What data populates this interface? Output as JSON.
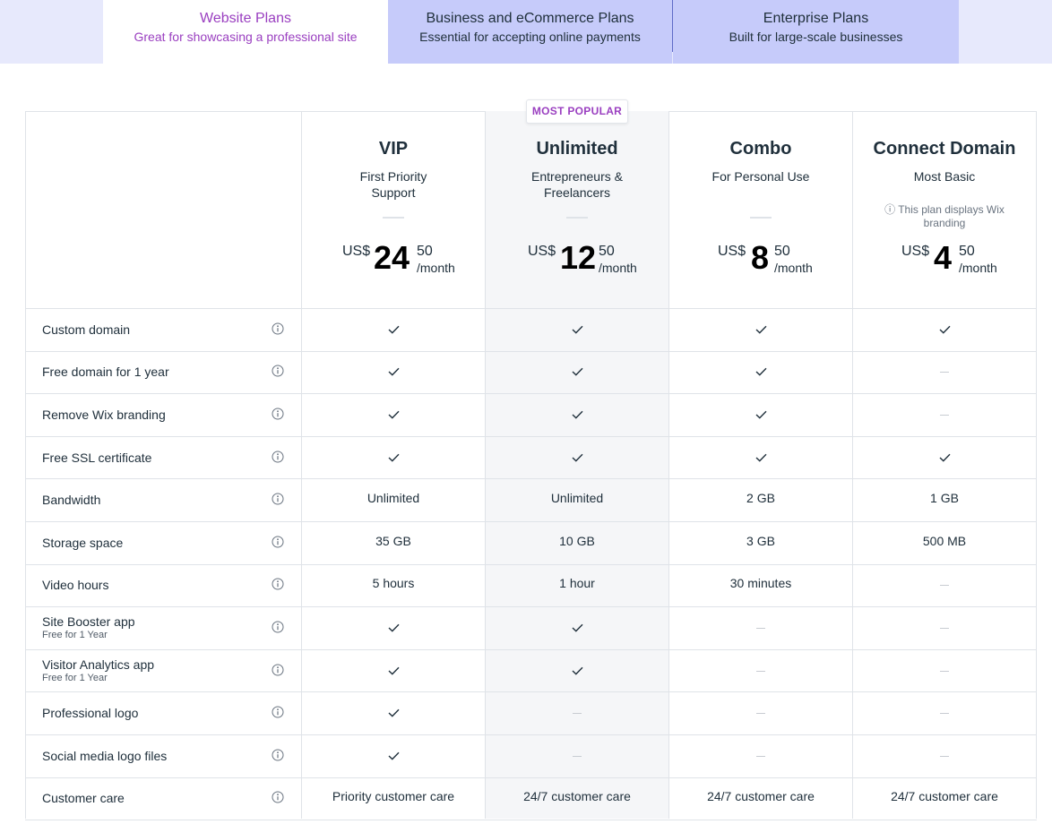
{
  "tabs": [
    {
      "title": "Website Plans",
      "subtitle": "Great for showcasing a professional site"
    },
    {
      "title": "Business and eCommerce Plans",
      "subtitle": "Essential for accepting online payments"
    },
    {
      "title": "Enterprise Plans",
      "subtitle": "Built for large-scale businesses"
    }
  ],
  "badge": "MOST POPULAR",
  "currency": "US$",
  "plans": [
    {
      "name": "VIP",
      "tagline": "First Priority Support",
      "dollars": "24",
      "cents": "50",
      "period": "/month",
      "note": ""
    },
    {
      "name": "Unlimited",
      "tagline": "Entrepreneurs & Freelancers",
      "dollars": "12",
      "cents": "50",
      "period": "/month",
      "note": ""
    },
    {
      "name": "Combo",
      "tagline": "For Personal Use",
      "dollars": "8",
      "cents": "50",
      "period": "/month",
      "note": ""
    },
    {
      "name": "Connect Domain",
      "tagline": "Most Basic",
      "dollars": "4",
      "cents": "50",
      "period": "/month",
      "note": "This plan displays Wix branding"
    }
  ],
  "features": [
    {
      "label": "Custom domain",
      "sub": "",
      "values": [
        "check",
        "check",
        "check",
        "check"
      ]
    },
    {
      "label": "Free domain for 1 year",
      "sub": "",
      "values": [
        "check",
        "check",
        "check",
        "dash"
      ]
    },
    {
      "label": "Remove Wix branding",
      "sub": "",
      "values": [
        "check",
        "check",
        "check",
        "dash"
      ]
    },
    {
      "label": "Free SSL certificate",
      "sub": "",
      "values": [
        "check",
        "check",
        "check",
        "check"
      ]
    },
    {
      "label": "Bandwidth",
      "sub": "",
      "values": [
        "Unlimited",
        "Unlimited",
        "2 GB",
        "1 GB"
      ]
    },
    {
      "label": "Storage space",
      "sub": "",
      "values": [
        "35 GB",
        "10 GB",
        "3 GB",
        "500 MB"
      ]
    },
    {
      "label": "Video hours",
      "sub": "",
      "values": [
        "5 hours",
        "1 hour",
        "30 minutes",
        "dash"
      ]
    },
    {
      "label": "Site Booster app",
      "sub": "Free for 1 Year",
      "values": [
        "check",
        "check",
        "dash",
        "dash"
      ]
    },
    {
      "label": "Visitor Analytics app",
      "sub": "Free for 1 Year",
      "values": [
        "check",
        "check",
        "dash",
        "dash"
      ]
    },
    {
      "label": "Professional logo",
      "sub": "",
      "values": [
        "check",
        "dash",
        "dash",
        "dash"
      ]
    },
    {
      "label": "Social media logo files",
      "sub": "",
      "values": [
        "check",
        "dash",
        "dash",
        "dash"
      ]
    },
    {
      "label": "Customer care",
      "sub": "",
      "values": [
        "Priority customer care",
        "24/7 customer care",
        "24/7 customer care",
        "24/7 customer care"
      ]
    }
  ],
  "colors": {
    "accent": "#9a3fc0",
    "tab_inactive": "#c6cbfa",
    "tab_bar": "#e7e9fc",
    "highlight_column": "#f5f6f8",
    "border": "#dfe3e8"
  }
}
